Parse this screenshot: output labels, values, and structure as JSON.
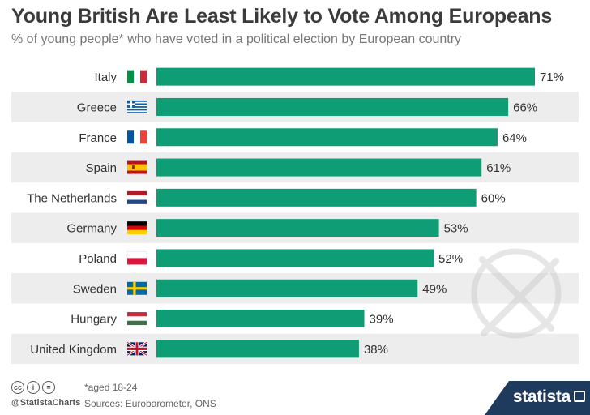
{
  "header": {
    "title": "Young British Are Least Likely to Vote Among Europeans",
    "subtitle": "% of young people* who have voted in a political election by European country"
  },
  "chart_data": {
    "type": "bar",
    "orientation": "horizontal",
    "categories": [
      "Italy",
      "Greece",
      "France",
      "Spain",
      "The Netherlands",
      "Germany",
      "Poland",
      "Sweden",
      "Hungary",
      "United Kingdom"
    ],
    "values": [
      71,
      66,
      64,
      61,
      60,
      53,
      52,
      49,
      39,
      38
    ],
    "value_labels": [
      "71%",
      "66%",
      "64%",
      "61%",
      "60%",
      "53%",
      "52%",
      "49%",
      "39%",
      "38%"
    ],
    "flag_icons": [
      "italy-flag-icon",
      "greece-flag-icon",
      "france-flag-icon",
      "spain-flag-icon",
      "netherlands-flag-icon",
      "germany-flag-icon",
      "poland-flag-icon",
      "sweden-flag-icon",
      "hungary-flag-icon",
      "uk-flag-icon"
    ],
    "xlim": [
      0,
      71
    ],
    "bar_color": "#0f9d76",
    "stripe_color": "#ededed",
    "title": "Young British Are Least Likely to Vote Among Europeans",
    "xlabel": "",
    "ylabel": ""
  },
  "footer": {
    "cc_icons": [
      "cc",
      "i",
      "="
    ],
    "handle": "@StatistaCharts",
    "note": "*aged 18-24",
    "source": "Sources: Eurobarometer, ONS",
    "brand": "statista"
  }
}
